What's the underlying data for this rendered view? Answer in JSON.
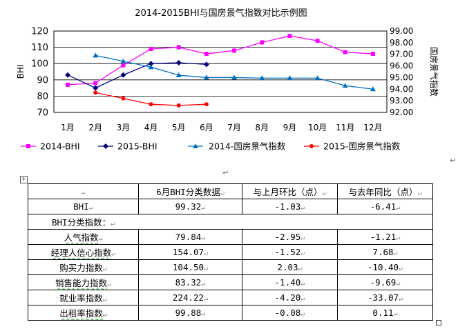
{
  "chart_data": {
    "type": "line",
    "title": "2014-2015BHI与国房景气指数对比示例图",
    "categories": [
      "1月",
      "2月",
      "3月",
      "4月",
      "5月",
      "6月",
      "7月",
      "8月",
      "9月",
      "10月",
      "11月",
      "12月"
    ],
    "ylabel": "BHI",
    "y2label": "国房景气指数",
    "ylim": [
      70,
      120
    ],
    "yticks": [
      "70",
      "80",
      "90",
      "100",
      "110",
      "120"
    ],
    "y2lim": [
      92.0,
      99.0
    ],
    "y2ticks": [
      "92.00",
      "93.00",
      "94.00",
      "95.00",
      "96.00",
      "97.00",
      "98.00",
      "99.00"
    ],
    "grid": true,
    "legend_position": "bottom",
    "series": [
      {
        "name": "2014-BHI",
        "axis": "left",
        "color": "#ff00ff",
        "marker": "square",
        "values": [
          87,
          88,
          99,
          109,
          110,
          106,
          108,
          113,
          117,
          114,
          107,
          106
        ]
      },
      {
        "name": "2015-BHI",
        "axis": "left",
        "color": "#000080",
        "marker": "diamond",
        "values": [
          93,
          85,
          93,
          100,
          100.5,
          99.5,
          null,
          null,
          null,
          null,
          null,
          null
        ]
      },
      {
        "name": "2014-国房景气指数",
        "axis": "right",
        "color": "#0070c0",
        "marker": "triangle",
        "values": [
          null,
          96.9,
          96.4,
          95.9,
          95.2,
          95.0,
          95.0,
          94.95,
          94.95,
          94.95,
          94.3,
          94.0
        ]
      },
      {
        "name": "2015-国房景气指数",
        "axis": "right",
        "color": "#ff0000",
        "marker": "circle",
        "values": [
          null,
          93.7,
          93.2,
          92.7,
          92.6,
          92.7,
          null,
          null,
          null,
          null,
          null,
          null
        ]
      }
    ]
  },
  "table": {
    "headers": [
      "",
      "6月BHI分类数据",
      "与上月环比（点）",
      "与去年同比（点）"
    ],
    "bhi_row": [
      "BHI",
      "99.32",
      "-1.03",
      "-6.41"
    ],
    "section_label": "BHI分类指数：",
    "rows": [
      [
        "人气指数",
        "79.84",
        "-2.95",
        "-1.21"
      ],
      [
        "经理人信心指数",
        "154.07",
        "-1.52",
        "7.68"
      ],
      [
        "购买力指数",
        "104.50",
        "2.03",
        "-10.40"
      ],
      [
        "销售能力指数",
        "83.32",
        "-1.40",
        "-9.69"
      ],
      [
        "就业率指数",
        "224.22",
        "-4.20",
        "-33.07"
      ],
      [
        "出租率指数",
        "99.88",
        "-0.08",
        "0.11"
      ]
    ]
  }
}
